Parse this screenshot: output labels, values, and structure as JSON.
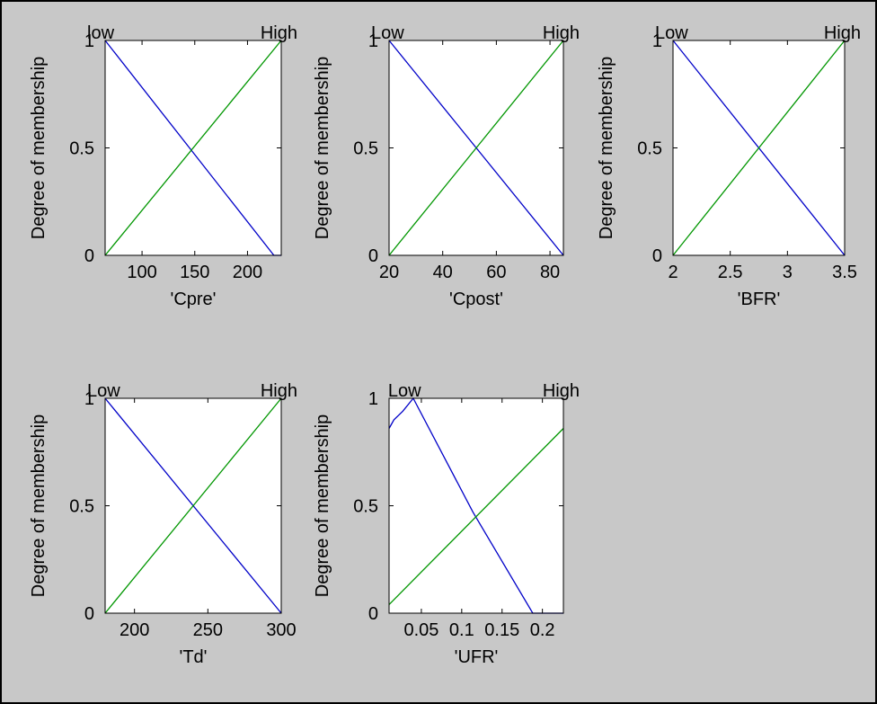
{
  "figure": {
    "background": "#c8c8c8",
    "axes_background": "#ffffff"
  },
  "colors": {
    "low": "#0000c8",
    "high": "#009600"
  },
  "chart_data": [
    {
      "type": "line",
      "xlabel": "'Cpre'",
      "ylabel": "Degree of membership",
      "xlim": [
        65,
        232
      ],
      "ylim": [
        0,
        1
      ],
      "xticks": [
        {
          "value": 100,
          "label": "100"
        },
        {
          "value": 150,
          "label": "150"
        },
        {
          "value": 200,
          "label": "200"
        }
      ],
      "yticks": [
        {
          "value": 0,
          "label": "0"
        },
        {
          "value": 0.5,
          "label": "0.5"
        },
        {
          "value": 1,
          "label": "1"
        }
      ],
      "series": [
        {
          "name": "low",
          "color": "#0000c8",
          "x": [
            65,
            225,
            232
          ],
          "y": [
            1,
            0,
            0
          ]
        },
        {
          "name": "High",
          "color": "#009600",
          "x": [
            65,
            232
          ],
          "y": [
            0,
            1
          ]
        }
      ],
      "mf_labels": [
        {
          "text": "low",
          "x": 65,
          "anchor": "start"
        },
        {
          "text": "High",
          "x": 232,
          "anchor": "end"
        }
      ]
    },
    {
      "type": "line",
      "xlabel": "'Cpost'",
      "ylabel": "Degree of membership",
      "xlim": [
        20,
        85
      ],
      "ylim": [
        0,
        1
      ],
      "xticks": [
        {
          "value": 20,
          "label": "20"
        },
        {
          "value": 40,
          "label": "40"
        },
        {
          "value": 60,
          "label": "60"
        },
        {
          "value": 80,
          "label": "80"
        }
      ],
      "yticks": [
        {
          "value": 0,
          "label": "0"
        },
        {
          "value": 0.5,
          "label": "0.5"
        },
        {
          "value": 1,
          "label": "1"
        }
      ],
      "series": [
        {
          "name": "Low",
          "color": "#0000c8",
          "x": [
            20,
            85
          ],
          "y": [
            1,
            0
          ]
        },
        {
          "name": "High",
          "color": "#009600",
          "x": [
            20,
            85
          ],
          "y": [
            0,
            1
          ]
        }
      ],
      "mf_labels": [
        {
          "text": "Low",
          "x": 20,
          "anchor": "start"
        },
        {
          "text": "High",
          "x": 85,
          "anchor": "end"
        }
      ]
    },
    {
      "type": "line",
      "xlabel": "'BFR'",
      "ylabel": "Degree of membership",
      "xlim": [
        2,
        3.5
      ],
      "ylim": [
        0,
        1
      ],
      "xticks": [
        {
          "value": 2,
          "label": "2"
        },
        {
          "value": 2.5,
          "label": "2.5"
        },
        {
          "value": 3,
          "label": "3"
        },
        {
          "value": 3.5,
          "label": "3.5"
        }
      ],
      "yticks": [
        {
          "value": 0,
          "label": "0"
        },
        {
          "value": 0.5,
          "label": "0.5"
        },
        {
          "value": 1,
          "label": "1"
        }
      ],
      "series": [
        {
          "name": "Low",
          "color": "#0000c8",
          "x": [
            2,
            3.5
          ],
          "y": [
            1,
            0
          ]
        },
        {
          "name": "High",
          "color": "#009600",
          "x": [
            2,
            3.5
          ],
          "y": [
            0,
            1
          ]
        }
      ],
      "mf_labels": [
        {
          "text": "Low",
          "x": 2,
          "anchor": "start"
        },
        {
          "text": "High",
          "x": 3.5,
          "anchor": "end"
        }
      ]
    },
    {
      "type": "line",
      "xlabel": "'Td'",
      "ylabel": "Degree of membership",
      "xlim": [
        180,
        300
      ],
      "ylim": [
        0,
        1
      ],
      "xticks": [
        {
          "value": 200,
          "label": "200"
        },
        {
          "value": 250,
          "label": "250"
        },
        {
          "value": 300,
          "label": "300"
        }
      ],
      "yticks": [
        {
          "value": 0,
          "label": "0"
        },
        {
          "value": 0.5,
          "label": "0.5"
        },
        {
          "value": 1,
          "label": "1"
        }
      ],
      "series": [
        {
          "name": "Low",
          "color": "#0000c8",
          "x": [
            180,
            300
          ],
          "y": [
            1,
            0
          ]
        },
        {
          "name": "High",
          "color": "#009600",
          "x": [
            180,
            300
          ],
          "y": [
            0,
            1
          ]
        }
      ],
      "mf_labels": [
        {
          "text": "Low",
          "x": 180,
          "anchor": "start"
        },
        {
          "text": "High",
          "x": 300,
          "anchor": "end"
        }
      ]
    },
    {
      "type": "line",
      "xlabel": "'UFR'",
      "ylabel": "Degree of membership",
      "xlim": [
        0.01,
        0.226
      ],
      "ylim": [
        0,
        1
      ],
      "xticks": [
        {
          "value": 0.05,
          "label": "0.05"
        },
        {
          "value": 0.1,
          "label": "0.1"
        },
        {
          "value": 0.15,
          "label": "0.15"
        },
        {
          "value": 0.2,
          "label": "0.2"
        }
      ],
      "yticks": [
        {
          "value": 0,
          "label": "0"
        },
        {
          "value": 0.5,
          "label": "0.5"
        },
        {
          "value": 1,
          "label": "1"
        }
      ],
      "series": [
        {
          "name": "Low",
          "color": "#0000c8",
          "x": [
            0.01,
            0.016,
            0.027,
            0.04,
            0.114,
            0.188,
            0.226
          ],
          "y": [
            0.86,
            0.9,
            0.94,
            1,
            0.47,
            0,
            0
          ]
        },
        {
          "name": "High",
          "color": "#009600",
          "x": [
            0.01,
            0.226
          ],
          "y": [
            0.04,
            0.86
          ]
        }
      ],
      "mf_labels": [
        {
          "text": "Low",
          "x": 0.031,
          "anchor": "start"
        },
        {
          "text": "High",
          "x": 0.226,
          "anchor": "end"
        }
      ]
    }
  ]
}
